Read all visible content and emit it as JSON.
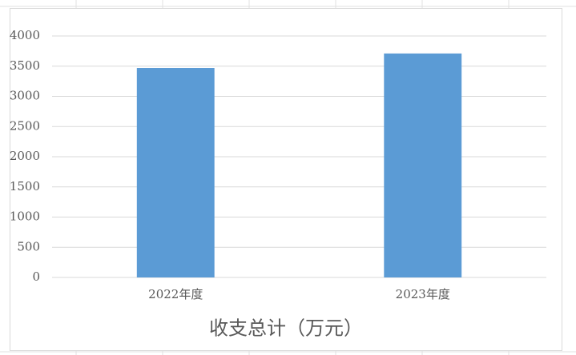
{
  "chart_data": {
    "type": "bar",
    "title": "收支总计（万元）",
    "categories": [
      "2022年度",
      "2023年度"
    ],
    "values": [
      3470,
      3710
    ],
    "color": "#5b9bd5",
    "ylim": [
      0,
      4000
    ],
    "yticks": [
      0,
      500,
      1000,
      1500,
      2000,
      2500,
      3000,
      3500,
      4000
    ],
    "grid": true
  }
}
